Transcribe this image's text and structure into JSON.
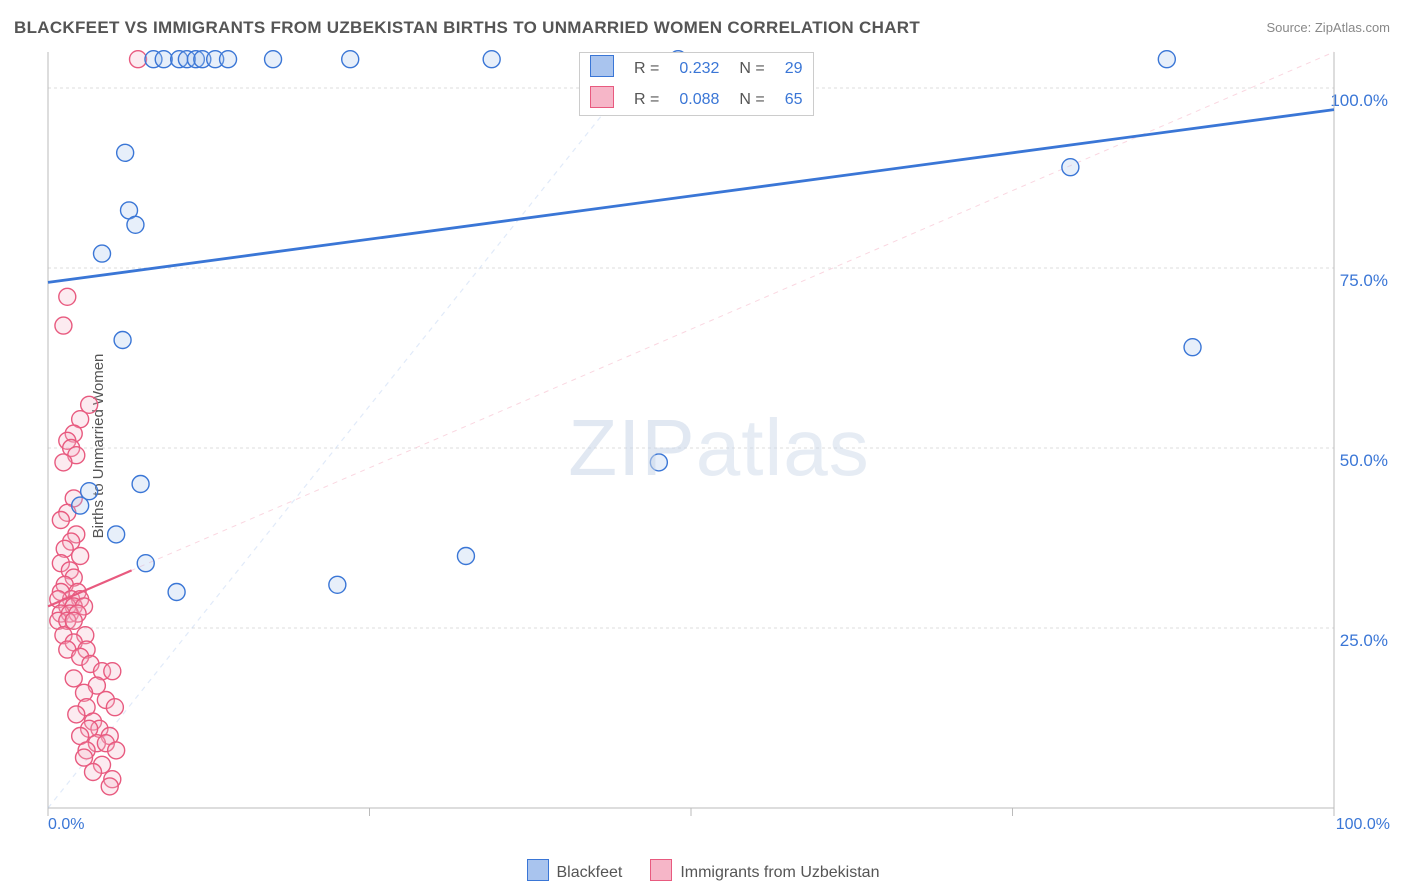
{
  "title": "BLACKFEET VS IMMIGRANTS FROM UZBEKISTAN BIRTHS TO UNMARRIED WOMEN CORRELATION CHART",
  "source": "Source: ZipAtlas.com",
  "ylabel": "Births to Unmarried Women",
  "watermark_bold": "ZIP",
  "watermark_thin": "atlas",
  "chart": {
    "type": "scatter",
    "background_color": "#ffffff",
    "grid_color": "#dddddd",
    "grid_dash": "3,3",
    "axis_color": "#bbbbbb",
    "marker_radius": 8.5,
    "marker_stroke_width": 1.4,
    "marker_fill_opacity": 0.28,
    "xlim": [
      0,
      100
    ],
    "ylim": [
      0,
      105
    ],
    "xtick_positions": [
      0,
      25,
      50,
      75,
      100
    ],
    "xtick_labels": [
      "0.0%",
      "",
      "",
      "",
      "100.0%"
    ],
    "ytick_positions": [
      25,
      50,
      75,
      100
    ],
    "ytick_labels": [
      "25.0%",
      "50.0%",
      "75.0%",
      "100.0%"
    ],
    "xaxis_label_color": "#3a76d6",
    "yaxis_label_color": "#3a76d6",
    "series": {
      "blackfeet": {
        "label": "Blackfeet",
        "color_stroke": "#3a76d6",
        "color_fill": "#a9c4ee",
        "trend": {
          "x1": 0,
          "y1": 73,
          "x2": 100,
          "y2": 97,
          "width": 2.8,
          "dash": "none"
        },
        "trend_extrapolate": {
          "x1": 0,
          "y1": 0,
          "x2": 47,
          "y2": 105,
          "width": 1.2,
          "dash": "5,5",
          "opacity": 0.35
        },
        "points": [
          {
            "x": 8.2,
            "y": 104
          },
          {
            "x": 9.0,
            "y": 104
          },
          {
            "x": 10.2,
            "y": 104
          },
          {
            "x": 10.8,
            "y": 104
          },
          {
            "x": 11.5,
            "y": 104
          },
          {
            "x": 12.0,
            "y": 104
          },
          {
            "x": 13.0,
            "y": 104
          },
          {
            "x": 14.0,
            "y": 104
          },
          {
            "x": 17.5,
            "y": 104
          },
          {
            "x": 23.5,
            "y": 104
          },
          {
            "x": 34.5,
            "y": 104
          },
          {
            "x": 49.0,
            "y": 104
          },
          {
            "x": 87.0,
            "y": 104
          },
          {
            "x": 6.0,
            "y": 91
          },
          {
            "x": 6.3,
            "y": 83
          },
          {
            "x": 6.8,
            "y": 81
          },
          {
            "x": 4.2,
            "y": 77
          },
          {
            "x": 5.8,
            "y": 65
          },
          {
            "x": 7.2,
            "y": 45
          },
          {
            "x": 3.2,
            "y": 44
          },
          {
            "x": 2.5,
            "y": 42
          },
          {
            "x": 5.3,
            "y": 38
          },
          {
            "x": 7.6,
            "y": 34
          },
          {
            "x": 22.5,
            "y": 31
          },
          {
            "x": 32.5,
            "y": 35
          },
          {
            "x": 10.0,
            "y": 30
          },
          {
            "x": 79.5,
            "y": 89
          },
          {
            "x": 89.0,
            "y": 64
          },
          {
            "x": 47.5,
            "y": 48
          }
        ]
      },
      "uzbekistan": {
        "label": "Immigrants from Uzbekistan",
        "color_stroke": "#e85a7f",
        "color_fill": "#f6b6c8",
        "trend": {
          "x1": 0,
          "y1": 28,
          "x2": 6.5,
          "y2": 33,
          "width": 2.2,
          "dash": "none"
        },
        "trend_extrapolate": {
          "x1": 0,
          "y1": 28,
          "x2": 100,
          "y2": 105,
          "width": 1,
          "dash": "5,5",
          "opacity": 0.55
        },
        "points": [
          {
            "x": 1.5,
            "y": 71
          },
          {
            "x": 1.2,
            "y": 67
          },
          {
            "x": 3.2,
            "y": 56
          },
          {
            "x": 2.5,
            "y": 54
          },
          {
            "x": 2.0,
            "y": 52
          },
          {
            "x": 1.5,
            "y": 51
          },
          {
            "x": 1.8,
            "y": 50
          },
          {
            "x": 2.2,
            "y": 49
          },
          {
            "x": 1.2,
            "y": 48
          },
          {
            "x": 2.0,
            "y": 43
          },
          {
            "x": 1.5,
            "y": 41
          },
          {
            "x": 1.0,
            "y": 40
          },
          {
            "x": 2.2,
            "y": 38
          },
          {
            "x": 1.8,
            "y": 37
          },
          {
            "x": 1.3,
            "y": 36
          },
          {
            "x": 2.5,
            "y": 35
          },
          {
            "x": 1.0,
            "y": 34
          },
          {
            "x": 1.7,
            "y": 33
          },
          {
            "x": 2.0,
            "y": 32
          },
          {
            "x": 1.3,
            "y": 31
          },
          {
            "x": 2.3,
            "y": 30
          },
          {
            "x": 1.0,
            "y": 30
          },
          {
            "x": 1.8,
            "y": 29
          },
          {
            "x": 2.5,
            "y": 29
          },
          {
            "x": 0.8,
            "y": 29
          },
          {
            "x": 1.5,
            "y": 28
          },
          {
            "x": 2.0,
            "y": 28
          },
          {
            "x": 2.8,
            "y": 28
          },
          {
            "x": 1.0,
            "y": 27
          },
          {
            "x": 1.7,
            "y": 27
          },
          {
            "x": 2.3,
            "y": 27
          },
          {
            "x": 0.8,
            "y": 26
          },
          {
            "x": 1.5,
            "y": 26
          },
          {
            "x": 2.0,
            "y": 26
          },
          {
            "x": 2.9,
            "y": 24
          },
          {
            "x": 1.2,
            "y": 24
          },
          {
            "x": 2.0,
            "y": 23
          },
          {
            "x": 3.0,
            "y": 22
          },
          {
            "x": 1.5,
            "y": 22
          },
          {
            "x": 2.5,
            "y": 21
          },
          {
            "x": 3.3,
            "y": 20
          },
          {
            "x": 4.2,
            "y": 19
          },
          {
            "x": 5.0,
            "y": 19
          },
          {
            "x": 2.0,
            "y": 18
          },
          {
            "x": 3.8,
            "y": 17
          },
          {
            "x": 2.8,
            "y": 16
          },
          {
            "x": 4.5,
            "y": 15
          },
          {
            "x": 3.0,
            "y": 14
          },
          {
            "x": 5.2,
            "y": 14
          },
          {
            "x": 2.2,
            "y": 13
          },
          {
            "x": 3.5,
            "y": 12
          },
          {
            "x": 4.0,
            "y": 11
          },
          {
            "x": 3.2,
            "y": 11
          },
          {
            "x": 4.8,
            "y": 10
          },
          {
            "x": 2.5,
            "y": 10
          },
          {
            "x": 3.8,
            "y": 9
          },
          {
            "x": 4.5,
            "y": 9
          },
          {
            "x": 3.0,
            "y": 8
          },
          {
            "x": 5.3,
            "y": 8
          },
          {
            "x": 2.8,
            "y": 7
          },
          {
            "x": 4.2,
            "y": 6
          },
          {
            "x": 3.5,
            "y": 5
          },
          {
            "x": 5.0,
            "y": 4
          },
          {
            "x": 4.8,
            "y": 3
          },
          {
            "x": 7.0,
            "y": 104
          }
        ]
      }
    }
  },
  "top_legend": {
    "rows": [
      {
        "swatch_stroke": "#3a76d6",
        "swatch_fill": "#a9c4ee",
        "r_label": "R  =",
        "r_value": "0.232",
        "n_label": "N  =",
        "n_value": "29"
      },
      {
        "swatch_stroke": "#e85a7f",
        "swatch_fill": "#f6b6c8",
        "r_label": "R  =",
        "r_value": "0.088",
        "n_label": "N  =",
        "n_value": "65"
      }
    ],
    "value_color": "#3a76d6",
    "label_color": "#555555"
  },
  "bottom_legend": {
    "items": [
      {
        "swatch_stroke": "#3a76d6",
        "swatch_fill": "#a9c4ee",
        "label": "Blackfeet"
      },
      {
        "swatch_stroke": "#e85a7f",
        "swatch_fill": "#f6b6c8",
        "label": "Immigrants from Uzbekistan"
      }
    ]
  }
}
